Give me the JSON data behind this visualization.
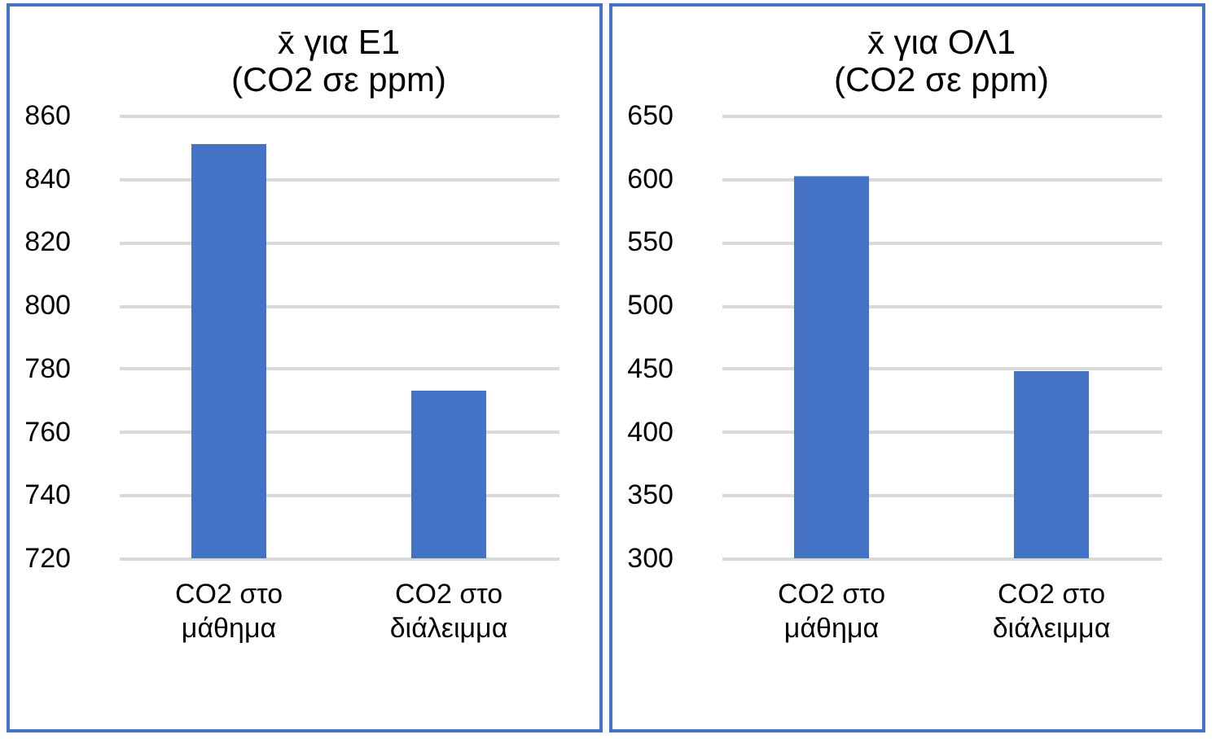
{
  "chart_data": [
    {
      "type": "bar",
      "title": "x̄ για Ε1\n(CO2 σε ppm)",
      "categories": [
        "CO2 στο μάθημα",
        "CO2 στο διάλειμμα"
      ],
      "values": [
        851,
        773
      ],
      "color": "#4472c4",
      "ylim": [
        720,
        860
      ],
      "yticks": [
        720,
        740,
        760,
        780,
        800,
        820,
        840,
        860
      ],
      "grid": "y"
    },
    {
      "type": "bar",
      "title": "x̄ για ΟΛ1\n(CO2 σε ppm)",
      "categories": [
        "CO2 στο μάθημα",
        "CO2 στο διάλειμμα"
      ],
      "values": [
        602,
        448
      ],
      "color": "#4472c4",
      "ylim": [
        300,
        650
      ],
      "yticks": [
        300,
        350,
        400,
        450,
        500,
        550,
        600,
        650
      ],
      "grid": "y"
    }
  ]
}
